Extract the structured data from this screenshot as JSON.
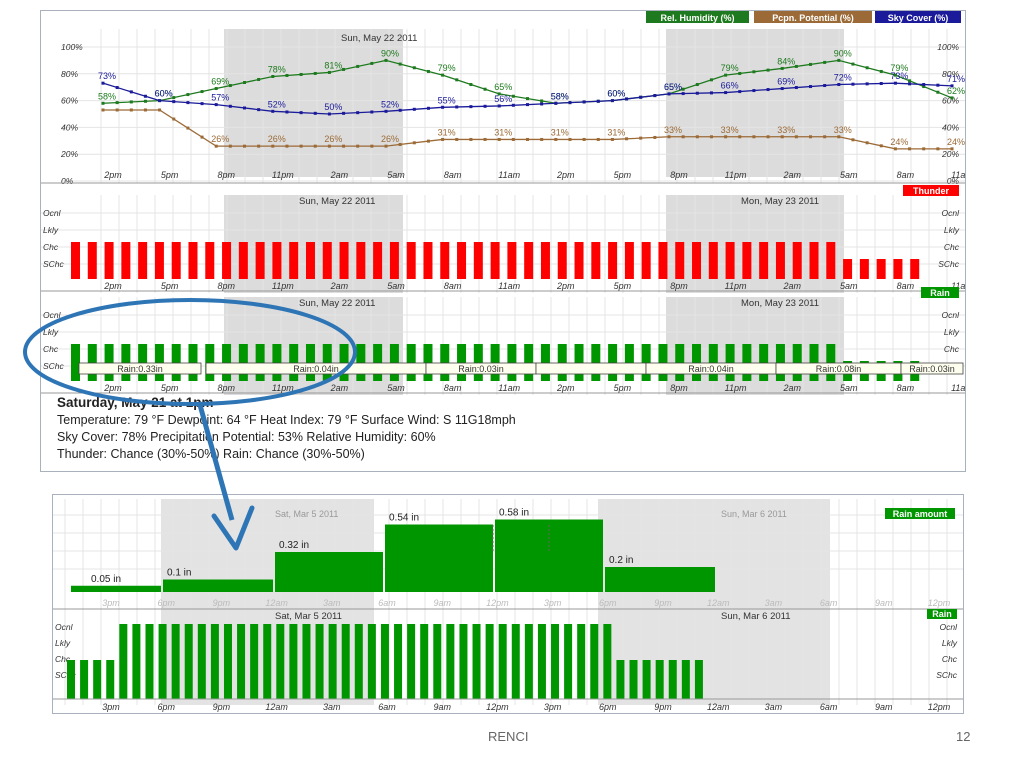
{
  "footer": {
    "center": "RENCI",
    "page": "12"
  },
  "summary": {
    "heading": "Saturday, May 21 at 1pm",
    "line1": "Temperature: 79 °F   Dewpoint: 64 °F   Heat Index: 79 °F   Surface Wind: S 11G18mph",
    "line2": "Sky Cover: 78%   Precipitation Potential: 53%   Relative Humidity: 60%",
    "line3": "Thunder: Chance (30%-50%)   Rain: Chance (30%-50%)"
  },
  "colors": {
    "humidity": "#1e7a1e",
    "pcpn": "#9b6a36",
    "sky": "#1a1a9a",
    "thunder": "#ff0000",
    "rain": "#009600",
    "shade": "#dcdcdc",
    "annotation": "#2e75b6"
  },
  "chart_data": [
    {
      "type": "line",
      "legend": [
        "Rel. Humidity (%)",
        "Pcpn. Potential (%)",
        "Sky Cover (%)"
      ],
      "date_labels": [
        "Sun, May 22 2011"
      ],
      "x_ticks": [
        "2pm",
        "5pm",
        "8pm",
        "11pm",
        "2am",
        "5am",
        "8am",
        "11am",
        "2pm",
        "5pm",
        "8pm",
        "11pm",
        "2am",
        "5am",
        "8am",
        "11am"
      ],
      "y_ticks": [
        "100%",
        "80%",
        "60%",
        "40%",
        "20%",
        "0%"
      ],
      "ylim": [
        0,
        100
      ],
      "series": [
        {
          "name": "Rel. Humidity (%)",
          "values": [
            58,
            60,
            69,
            78,
            81,
            90,
            79,
            65,
            58,
            60,
            65,
            79,
            84,
            90,
            79,
            62
          ],
          "labels": [
            "58%",
            "60%",
            "69%",
            "78%",
            "81%",
            "90%",
            "79%",
            "65%",
            "58%",
            "60%",
            "65%",
            "79%",
            "84%",
            "90%",
            "79%",
            "62%"
          ]
        },
        {
          "name": "Pcpn. Potential (%)",
          "values": [
            53,
            53,
            26,
            26,
            26,
            26,
            31,
            31,
            31,
            31,
            33,
            33,
            33,
            33,
            24,
            24
          ],
          "labels": [
            "",
            "",
            "26%",
            "26%",
            "26%",
            "26%",
            "31%",
            "31%",
            "31%",
            "31%",
            "33%",
            "33%",
            "33%",
            "33%",
            "24%",
            "24%"
          ]
        },
        {
          "name": "Sky Cover (%)",
          "values": [
            73,
            60,
            57,
            52,
            50,
            52,
            55,
            56,
            58,
            60,
            65,
            66,
            69,
            72,
            73,
            71
          ],
          "labels": [
            "73%",
            "60%",
            "57%",
            "52%",
            "50%",
            "52%",
            "55%",
            "56%",
            "58%",
            "60%",
            "65%",
            "66%",
            "69%",
            "72%",
            "73%",
            "71%"
          ]
        }
      ]
    },
    {
      "type": "bar",
      "legend": [
        "Thunder"
      ],
      "date_labels": [
        "Sun, May 22 2011",
        "Mon, May 23 2011"
      ],
      "y_ticks": [
        "Ocnl",
        "Lkly",
        "Chc",
        "SChc"
      ],
      "x_ticks": [
        "2pm",
        "5pm",
        "8pm",
        "11pm",
        "2am",
        "5am",
        "8am",
        "11am",
        "2pm",
        "5pm",
        "8pm",
        "11pm",
        "2am",
        "5am",
        "8am",
        "11am"
      ],
      "values": [
        "Chc",
        "Chc",
        "Chc",
        "Chc",
        "Chc",
        "Chc",
        "Chc",
        "Chc",
        "Chc",
        "Chc",
        "Chc",
        "Chc",
        "Chc",
        "Chc",
        "Chc",
        "Chc",
        "Chc",
        "Chc",
        "Chc",
        "Chc",
        "Chc",
        "Chc",
        "Chc",
        "Chc",
        "Chc",
        "Chc",
        "Chc",
        "Chc",
        "Chc",
        "Chc",
        "Chc",
        "Chc",
        "Chc",
        "Chc",
        "Chc",
        "Chc",
        "Chc",
        "Chc",
        "Chc",
        "Chc",
        "Chc",
        "Chc",
        "Chc",
        "Chc",
        "Chc",
        "Chc",
        "SChc",
        "SChc",
        "SChc",
        "SChc",
        "SChc"
      ]
    },
    {
      "type": "bar",
      "legend": [
        "Rain"
      ],
      "date_labels": [
        "Sun, May 22 2011",
        "Mon, May 23 2011"
      ],
      "y_ticks": [
        "Ocnl",
        "Lkly",
        "Chc",
        "SChc"
      ],
      "x_ticks": [
        "2pm",
        "5pm",
        "8pm",
        "11pm",
        "2am",
        "5am",
        "8am",
        "11am",
        "2pm",
        "5pm",
        "8pm",
        "11pm",
        "2am",
        "5am",
        "8am",
        "11am"
      ],
      "values": [
        "Chc",
        "Chc",
        "Chc",
        "Chc",
        "Chc",
        "Chc",
        "Chc",
        "Chc",
        "Chc",
        "Chc",
        "Chc",
        "Chc",
        "Chc",
        "Chc",
        "Chc",
        "Chc",
        "Chc",
        "Chc",
        "Chc",
        "Chc",
        "Chc",
        "Chc",
        "Chc",
        "Chc",
        "Chc",
        "Chc",
        "Chc",
        "Chc",
        "Chc",
        "Chc",
        "Chc",
        "Chc",
        "Chc",
        "Chc",
        "Chc",
        "Chc",
        "Chc",
        "Chc",
        "Chc",
        "Chc",
        "Chc",
        "Chc",
        "Chc",
        "Chc",
        "Chc",
        "Chc",
        "SChc",
        "SChc",
        "SChc",
        "SChc",
        "SChc"
      ],
      "amounts": [
        "Rain:0.33in",
        "Rain:0.04in",
        "Rain:0.03in",
        "",
        "Rain:0.04in",
        "Rain:0.08in",
        "Rain:0.03in"
      ]
    },
    {
      "type": "bar",
      "legend": [
        "Rain amount"
      ],
      "date_labels": [
        "Sat, Mar 5 2011",
        "Sun, Mar 6 2011"
      ],
      "x_ticks": [
        "3pm",
        "6pm",
        "9pm",
        "12am",
        "3am",
        "6am",
        "9am",
        "12pm",
        "3pm",
        "6pm",
        "9pm",
        "12am",
        "3am",
        "6am",
        "9am",
        "12pm"
      ],
      "categories": [
        "3pm-6pm",
        "6pm-12am",
        "12am-6am",
        "6am-12pm",
        "12pm-6pm",
        "6pm-12am"
      ],
      "values": [
        0.05,
        0.1,
        0.32,
        0.54,
        0.58,
        0.2
      ],
      "labels": [
        "0.05 in",
        "0.1 in",
        "0.32 in",
        "0.54 in",
        "0.58 in",
        "0.2 in"
      ]
    },
    {
      "type": "bar",
      "legend": [
        "Rain"
      ],
      "date_labels": [
        "Sat, Mar 5 2011",
        "Sun, Mar 6 2011"
      ],
      "y_ticks": [
        "Ocnl",
        "Lkly",
        "Chc",
        "SChc"
      ],
      "x_ticks": [
        "3pm",
        "6pm",
        "9pm",
        "12am",
        "3am",
        "6am",
        "9am",
        "12pm",
        "3pm",
        "6pm",
        "9pm",
        "12am",
        "3am",
        "6am",
        "9am",
        "12pm"
      ],
      "values": [
        "SChc",
        "SChc",
        "SChc",
        "SChc",
        "Lkly",
        "Lkly",
        "Lkly",
        "Lkly",
        "Lkly",
        "Lkly",
        "Lkly",
        "Lkly",
        "Lkly",
        "Lkly",
        "Lkly",
        "Lkly",
        "Lkly",
        "Lkly",
        "Lkly",
        "Lkly",
        "Lkly",
        "Lkly",
        "Lkly",
        "Lkly",
        "Lkly",
        "Lkly",
        "Lkly",
        "Lkly",
        "Lkly",
        "Lkly",
        "Lkly",
        "Lkly",
        "Lkly",
        "Lkly",
        "Lkly",
        "Lkly",
        "Lkly",
        "Lkly",
        "Lkly",
        "Lkly",
        "Lkly",
        "Lkly",
        "SChc",
        "SChc",
        "SChc",
        "SChc",
        "SChc",
        "SChc",
        "SChc"
      ]
    }
  ]
}
